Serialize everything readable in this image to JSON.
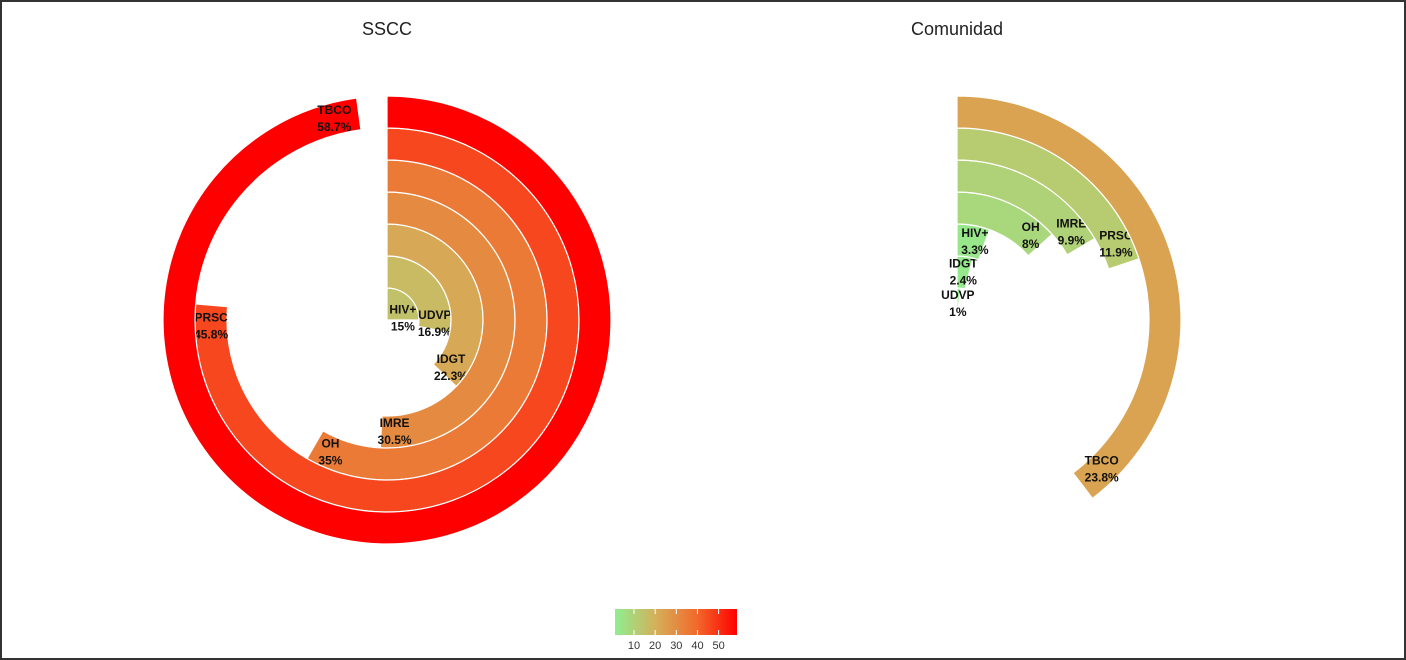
{
  "chart_data": [
    {
      "type": "radial-bar",
      "title": "SSCC",
      "categories": [
        "HIV+",
        "UDVP",
        "IDGT",
        "IMRE",
        "OH",
        "PRSC",
        "TBCO"
      ],
      "values": [
        15,
        16.9,
        22.3,
        30.5,
        35,
        45.8,
        58.7
      ],
      "value_labels": [
        "15%",
        "16.9%",
        "22.3%",
        "30.5%",
        "35%",
        "45.8%",
        "58.7%"
      ],
      "rlim": [
        0,
        60
      ]
    },
    {
      "type": "radial-bar",
      "title": "Comunidad",
      "categories": [
        "UDVP",
        "IDGT",
        "HIV+",
        "OH",
        "IMRE",
        "PRSC",
        "TBCO"
      ],
      "values": [
        1,
        2.4,
        3.3,
        8,
        9.9,
        11.9,
        23.8
      ],
      "value_labels": [
        "1%",
        "2.4%",
        "3.3%",
        "8%",
        "9.9%",
        "11.9%",
        "23.8%"
      ],
      "rlim": [
        0,
        60
      ]
    }
  ],
  "colorbar": {
    "colors": [
      "#90ee90",
      "#d4b05a",
      "#f26a2c",
      "#ff0000"
    ],
    "ticks": [
      10,
      20,
      30,
      40,
      50
    ]
  }
}
